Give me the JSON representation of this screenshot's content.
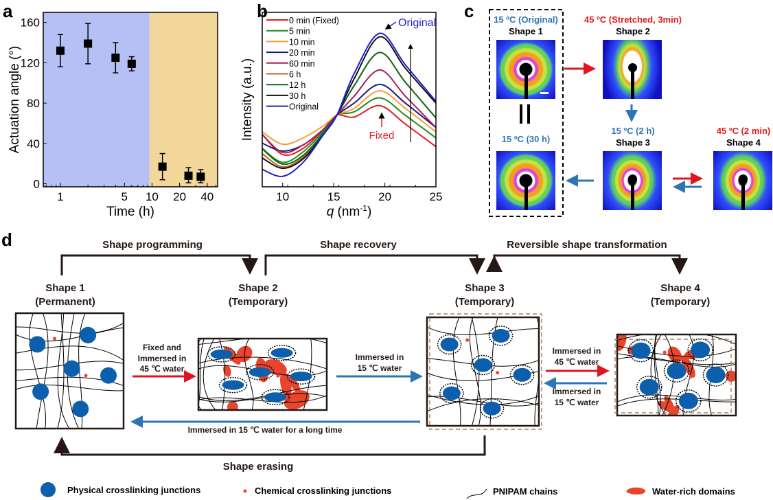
{
  "panel_labels": {
    "a": "a",
    "b": "b",
    "c": "c",
    "d": "d"
  },
  "chart_data": [
    {
      "type": "scatter",
      "panel": "a",
      "xlabel": "Time (h)",
      "ylabel": "Actuation angle (°)",
      "xscale": "log",
      "xlim": [
        0.65,
        52
      ],
      "ylim": [
        -3,
        170
      ],
      "xticks": [
        1,
        5,
        10,
        20,
        40
      ],
      "yticks": [
        0,
        40,
        80,
        120,
        160
      ],
      "background_regions": [
        {
          "from": 0.65,
          "to": 9.4,
          "color": "#b7c0f5"
        },
        {
          "from": 9.4,
          "to": 52,
          "color": "#f3d69a"
        }
      ],
      "points": [
        {
          "x": 1,
          "y": 132,
          "low": 116,
          "high": 148
        },
        {
          "x": 2,
          "y": 139,
          "low": 119,
          "high": 159
        },
        {
          "x": 4,
          "y": 125,
          "low": 110,
          "high": 140
        },
        {
          "x": 6,
          "y": 119,
          "low": 112,
          "high": 126
        },
        {
          "x": 13,
          "y": 17,
          "low": 4,
          "high": 30
        },
        {
          "x": 25,
          "y": 8,
          "low": 1,
          "high": 16
        },
        {
          "x": 34,
          "y": 7,
          "low": 1,
          "high": 14
        }
      ],
      "grid": false
    },
    {
      "type": "line",
      "panel": "b",
      "xlabel": "q (nm-1)",
      "xlabel_parts": {
        "var": "q",
        "unit": " (nm",
        "sup": "-1",
        "close": ")"
      },
      "ylabel": "Intensity (a.u.)",
      "xlim": [
        8,
        25
      ],
      "ylim": [
        0,
        100
      ],
      "xticks": [
        10,
        15,
        20,
        25
      ],
      "legend_placement": "top-left",
      "x": [
        8,
        10,
        12,
        14,
        15.3,
        17,
        19.5,
        22,
        25
      ],
      "series": [
        {
          "name": "0 min (Fixed)",
          "color": "#e31a1c",
          "values": [
            30,
            18.5,
            22,
            33,
            41,
            40,
            46.5,
            36,
            23
          ]
        },
        {
          "name": " 5 min",
          "color": "#1f8a1f",
          "values": [
            22,
            14,
            20,
            32,
            41,
            43,
            51,
            41,
            28
          ]
        },
        {
          "name": "10 min",
          "color": "#f5a030",
          "values": [
            31.5,
            24.4,
            28,
            35,
            41,
            45,
            55,
            45,
            31.5
          ]
        },
        {
          "name": "20 min",
          "color": "#1a1a7a",
          "values": [
            25,
            20.5,
            24,
            33,
            41,
            48,
            58.7,
            48,
            34
          ]
        },
        {
          "name": "60 min",
          "color": "#a3205c",
          "values": [
            30,
            19.7,
            24,
            33,
            41,
            52,
            67,
            52,
            34
          ]
        },
        {
          "name": "6 h",
          "color": "#b5692a",
          "values": [
            19,
            11.4,
            17,
            30,
            41,
            58,
            77,
            60,
            39.5
          ]
        },
        {
          "name": "12 h",
          "color": "#136b13",
          "values": [
            21.7,
            13,
            18,
            31,
            41,
            58,
            77,
            60,
            39.5
          ]
        },
        {
          "name": "30 h",
          "color": "#111111",
          "values": [
            16.5,
            10.6,
            16,
            30,
            41,
            62,
            86,
            68,
            48
          ]
        },
        {
          "name": "Original",
          "color": "#1f1fd0",
          "values": [
            10,
            6,
            14,
            30,
            41,
            65,
            88,
            70,
            49
          ]
        }
      ],
      "annotations": {
        "original": "Original",
        "fixed": "Fixed"
      }
    }
  ],
  "panel_c": {
    "shape1_temp": "15 ºC (Original)",
    "shape1": "Shape 1",
    "shape2_temp": "45 ºC (Stretched, 3min)",
    "shape2": "Shape 2",
    "shape3_temp": "15 ºC (2 h)",
    "shape3": "Shape 3",
    "shape4_temp": "45 ºC (2 min)",
    "shape4": "Shape 4",
    "shape1b_temp": "15 ºC (30 h)",
    "equal_sign": "||",
    "colors": {
      "cold": "#2e75b6",
      "hot": "#e31a1c"
    }
  },
  "panel_d": {
    "shape_programming": "Shape programming",
    "shape_recovery": "Shape recovery",
    "reversible": "Reversible shape transformation",
    "shape1": "Shape 1",
    "shape1_type": "(Permanent)",
    "shape2": "Shape 2",
    "shape2_type": "(Temporary)",
    "shape3": "Shape 3",
    "shape3_type": "(Temporary)",
    "shape4": "Shape 4",
    "shape4_type": "(Temporary)",
    "arrow12": [
      "Fixed and",
      "Immersed in",
      "45 ℃ water"
    ],
    "arrow23": [
      "Immersed in",
      "15 ℃ water"
    ],
    "arrow34": [
      "Immersed in",
      "45 ℃ water"
    ],
    "arrow43": [
      "Immersed in",
      "15 ℃ water"
    ],
    "long_arrow": "Immersed in 15 ℃ water for a long time",
    "shape_erasing": "Shape erasing",
    "legend": {
      "physical": "Physical crosslinking junctions",
      "chemical": "Chemical crosslinking junctions",
      "chains": "PNIPAM chains",
      "water": "Water-rich domains"
    },
    "colors": {
      "junction": "#0b5fad",
      "chemical": "#e8452c",
      "water": "#e8452c",
      "cold_arrow": "#2e75b6",
      "hot_arrow": "#e0151f"
    }
  }
}
